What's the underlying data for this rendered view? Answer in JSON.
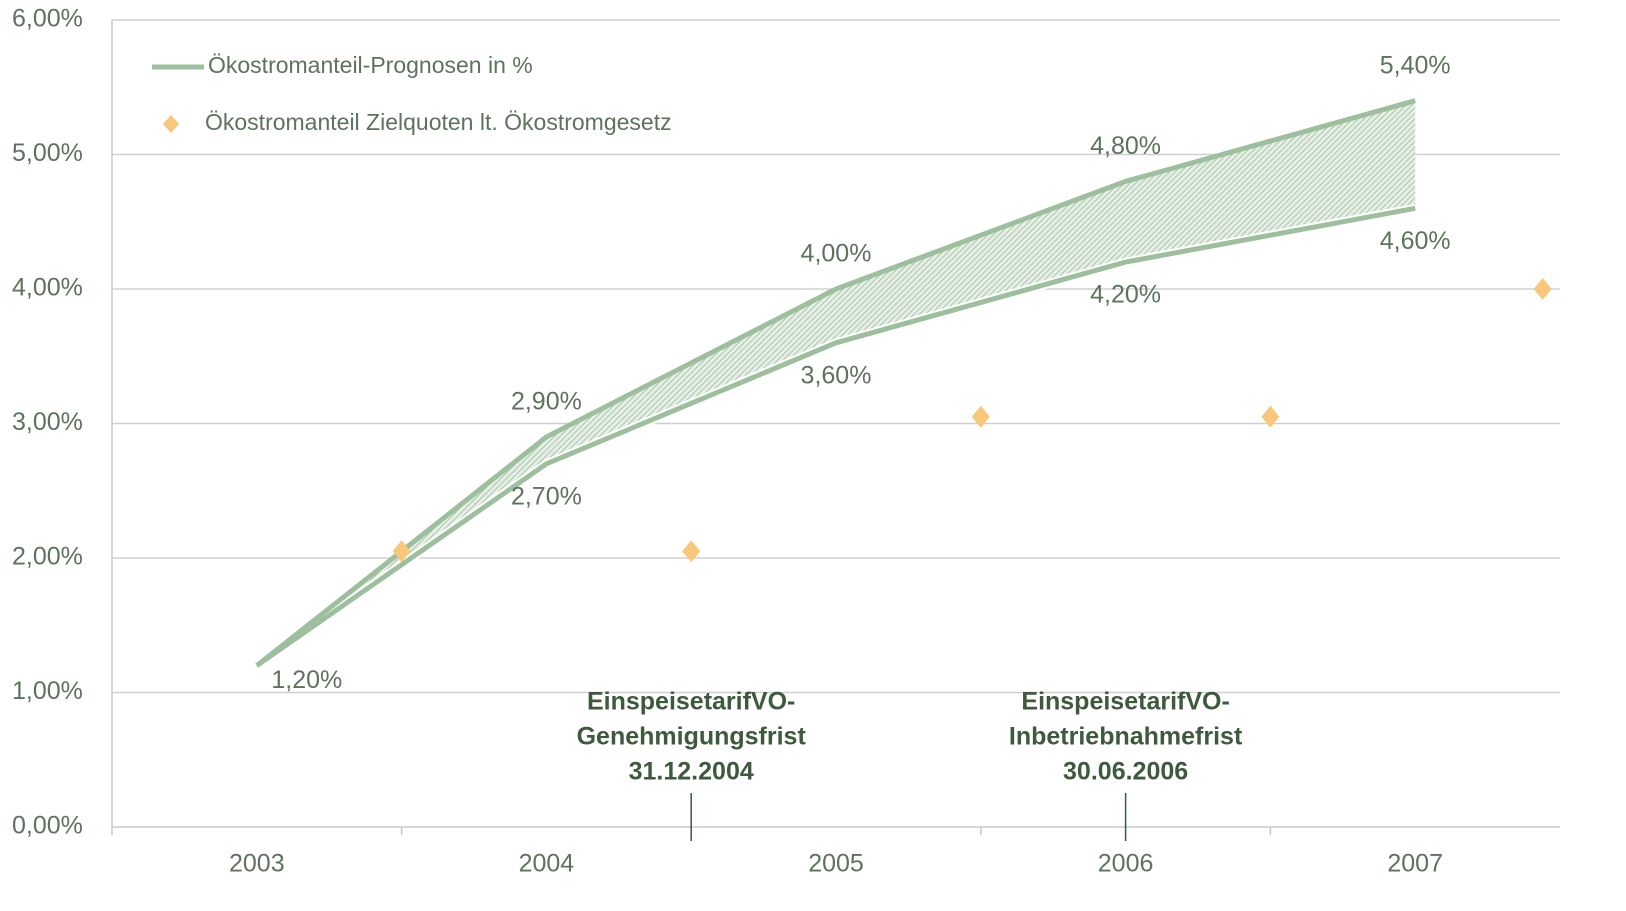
{
  "chart_data": {
    "type": "band-scatter",
    "xlim": [
      2002.5,
      2007.5
    ],
    "xticks": [
      2003,
      2004,
      2005,
      2006,
      2007
    ],
    "ylim": [
      0,
      6
    ],
    "yticks": [
      {
        "value": 0,
        "label": "0,00%"
      },
      {
        "value": 1,
        "label": "1,00%"
      },
      {
        "value": 2,
        "label": "2,00%"
      },
      {
        "value": 3,
        "label": "3,00%"
      },
      {
        "value": 4,
        "label": "4,00%"
      },
      {
        "value": 5,
        "label": "5,00%"
      },
      {
        "value": 6,
        "label": "6,00%"
      }
    ],
    "grid": true,
    "legend": "top-left",
    "series": [
      {
        "name": "Ökostromanteil-Prognosen in %",
        "type": "band",
        "color": "#9dbf9d",
        "x": [
          2003,
          2004,
          2005,
          2006,
          2007
        ],
        "values_high": [
          1.2,
          2.9,
          4.0,
          4.8,
          5.4
        ],
        "value_labels_high": [
          "1,20%",
          "2,90%",
          "4,00%",
          "4,80%",
          "5,40%"
        ],
        "values_low": [
          1.2,
          2.7,
          3.6,
          4.2,
          4.6
        ],
        "value_labels_low": [
          null,
          "2,70%",
          "3,60%",
          "4,20%",
          "4,60%"
        ]
      },
      {
        "name": "Ökostromanteil Zielquoten lt. Ökostromgesetz",
        "type": "scatter",
        "color": "#f9c77a",
        "x": [
          2003.5,
          2004.5,
          2005.5,
          2006.5,
          2007.44
        ],
        "values": [
          2.05,
          2.05,
          3.05,
          3.05,
          4.0
        ]
      }
    ],
    "annotations": [
      {
        "x": 2004.5,
        "lines": [
          "EinspeisetarifVO-",
          "Genehmigungsfrist",
          "31.12.2004"
        ]
      },
      {
        "x": 2006,
        "lines": [
          "EinspeisetarifVO-",
          "Inbetriebnahmefrist",
          "30.06.2006"
        ]
      }
    ]
  }
}
